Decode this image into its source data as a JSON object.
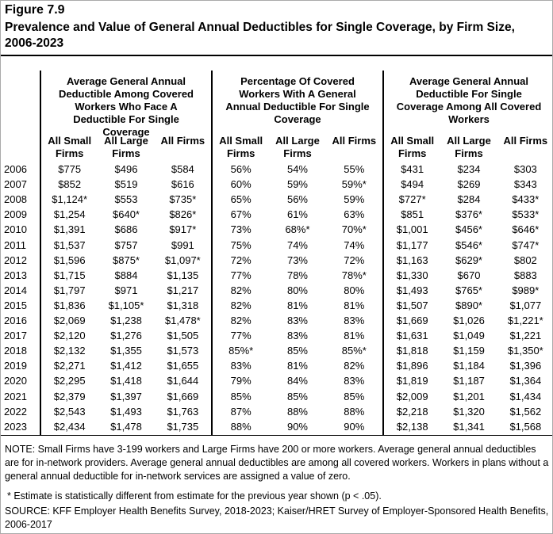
{
  "header": {
    "figure": "Figure 7.9",
    "title": "Prevalence and Value of General Annual Deductibles for Single Coverage, by Firm Size, 2006-2023"
  },
  "table": {
    "groups": [
      "Average General Annual Deductible Among Covered Workers Who Face A Deductible For Single Coverage",
      "Percentage Of Covered Workers With A General Annual Deductible For Single Coverage",
      "Average General Annual Deductible For Single Coverage Among All Covered Workers"
    ],
    "columns": [
      "All Small Firms",
      "All Large Firms",
      "All Firms",
      "All Small Firms",
      "All Large Firms",
      "All Firms",
      "All Small Firms",
      "All Large Firms",
      "All Firms"
    ],
    "rows": [
      [
        "2006",
        "$775",
        "$496",
        "$584",
        "56%",
        "54%",
        "55%",
        "$431",
        "$234",
        "$303"
      ],
      [
        "2007",
        "$852",
        "$519",
        "$616",
        "60%",
        "59%",
        "59%*",
        "$494",
        "$269",
        "$343"
      ],
      [
        "2008",
        "$1,124*",
        "$553",
        "$735*",
        "65%",
        "56%",
        "59%",
        "$727*",
        "$284",
        "$433*"
      ],
      [
        "2009",
        "$1,254",
        "$640*",
        "$826*",
        "67%",
        "61%",
        "63%",
        "$851",
        "$376*",
        "$533*"
      ],
      [
        "2010",
        "$1,391",
        "$686",
        "$917*",
        "73%",
        "68%*",
        "70%*",
        "$1,001",
        "$456*",
        "$646*"
      ],
      [
        "2011",
        "$1,537",
        "$757",
        "$991",
        "75%",
        "74%",
        "74%",
        "$1,177",
        "$546*",
        "$747*"
      ],
      [
        "2012",
        "$1,596",
        "$875*",
        "$1,097*",
        "72%",
        "73%",
        "72%",
        "$1,163",
        "$629*",
        "$802"
      ],
      [
        "2013",
        "$1,715",
        "$884",
        "$1,135",
        "77%",
        "78%",
        "78%*",
        "$1,330",
        "$670",
        "$883"
      ],
      [
        "2014",
        "$1,797",
        "$971",
        "$1,217",
        "82%",
        "80%",
        "80%",
        "$1,493",
        "$765*",
        "$989*"
      ],
      [
        "2015",
        "$1,836",
        "$1,105*",
        "$1,318",
        "82%",
        "81%",
        "81%",
        "$1,507",
        "$890*",
        "$1,077"
      ],
      [
        "2016",
        "$2,069",
        "$1,238",
        "$1,478*",
        "82%",
        "83%",
        "83%",
        "$1,669",
        "$1,026",
        "$1,221*"
      ],
      [
        "2017",
        "$2,120",
        "$1,276",
        "$1,505",
        "77%",
        "83%",
        "81%",
        "$1,631",
        "$1,049",
        "$1,221"
      ],
      [
        "2018",
        "$2,132",
        "$1,355",
        "$1,573",
        "85%*",
        "85%",
        "85%*",
        "$1,818",
        "$1,159",
        "$1,350*"
      ],
      [
        "2019",
        "$2,271",
        "$1,412",
        "$1,655",
        "83%",
        "81%",
        "82%",
        "$1,896",
        "$1,184",
        "$1,396"
      ],
      [
        "2020",
        "$2,295",
        "$1,418",
        "$1,644",
        "79%",
        "84%",
        "83%",
        "$1,819",
        "$1,187",
        "$1,364"
      ],
      [
        "2021",
        "$2,379",
        "$1,397",
        "$1,669",
        "85%",
        "85%",
        "85%",
        "$2,009",
        "$1,201",
        "$1,434"
      ],
      [
        "2022",
        "$2,543",
        "$1,493",
        "$1,763",
        "87%",
        "88%",
        "88%",
        "$2,218",
        "$1,320",
        "$1,562"
      ],
      [
        "2023",
        "$2,434",
        "$1,478",
        "$1,735",
        "88%",
        "90%",
        "90%",
        "$2,138",
        "$1,341",
        "$1,568"
      ]
    ]
  },
  "notes": {
    "note": "NOTE: Small Firms have 3-199 workers and Large Firms have 200 or more workers. Average general annual deductibles are for in-network providers. Average general annual deductibles are among all covered workers. Workers in plans without a general annual deductible for in-network services are assigned a value of zero.",
    "asterisk": "* Estimate is statistically different from estimate for the previous year shown (p < .05).",
    "source": "SOURCE: KFF Employer Health Benefits Survey, 2018-2023; Kaiser/HRET Survey of Employer-Sponsored Health Benefits, 2006-2017"
  }
}
